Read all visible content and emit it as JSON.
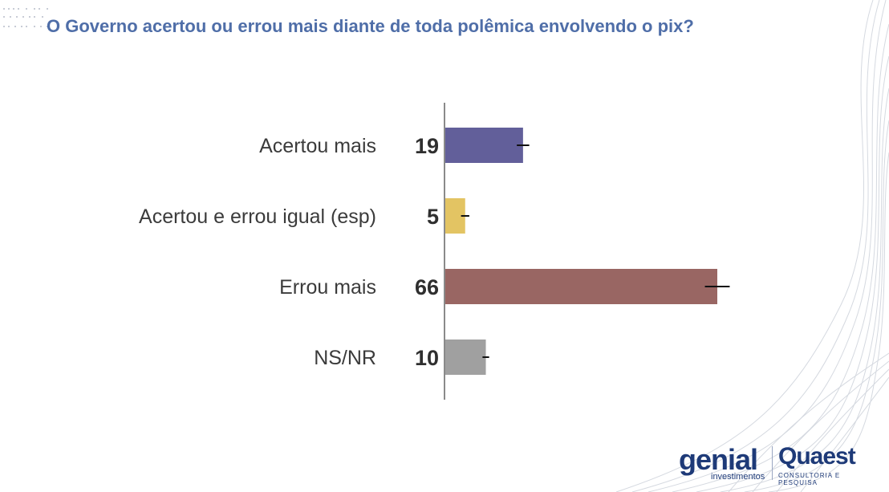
{
  "title": "O Governo acertou ou errou mais diante de toda polêmica envolvendo o pix?",
  "chart_data": {
    "type": "bar",
    "orientation": "horizontal",
    "categories": [
      "Acertou mais",
      "Acertou e errou igual (esp)",
      "Errou mais",
      "NS/NR"
    ],
    "values": [
      19,
      5,
      66,
      10
    ],
    "value_labels": [
      "19",
      "5",
      "66",
      "10"
    ],
    "error_margin": [
      1.5,
      1,
      3,
      0.8
    ],
    "colors": [
      "#625f9a",
      "#e3c463",
      "#996663",
      "#a0a0a0"
    ],
    "xlim": [
      0,
      66
    ],
    "title": "O Governo acertou ou errou mais diante de toda polêmica envolvendo o pix?",
    "xlabel": "",
    "ylabel": "",
    "grid": false,
    "legend": "none"
  },
  "logos": {
    "genial": "genial",
    "genial_sub": "investimentos",
    "quaest": "Quaest",
    "quaest_sub": "CONSULTORIA E PESQUISA"
  }
}
